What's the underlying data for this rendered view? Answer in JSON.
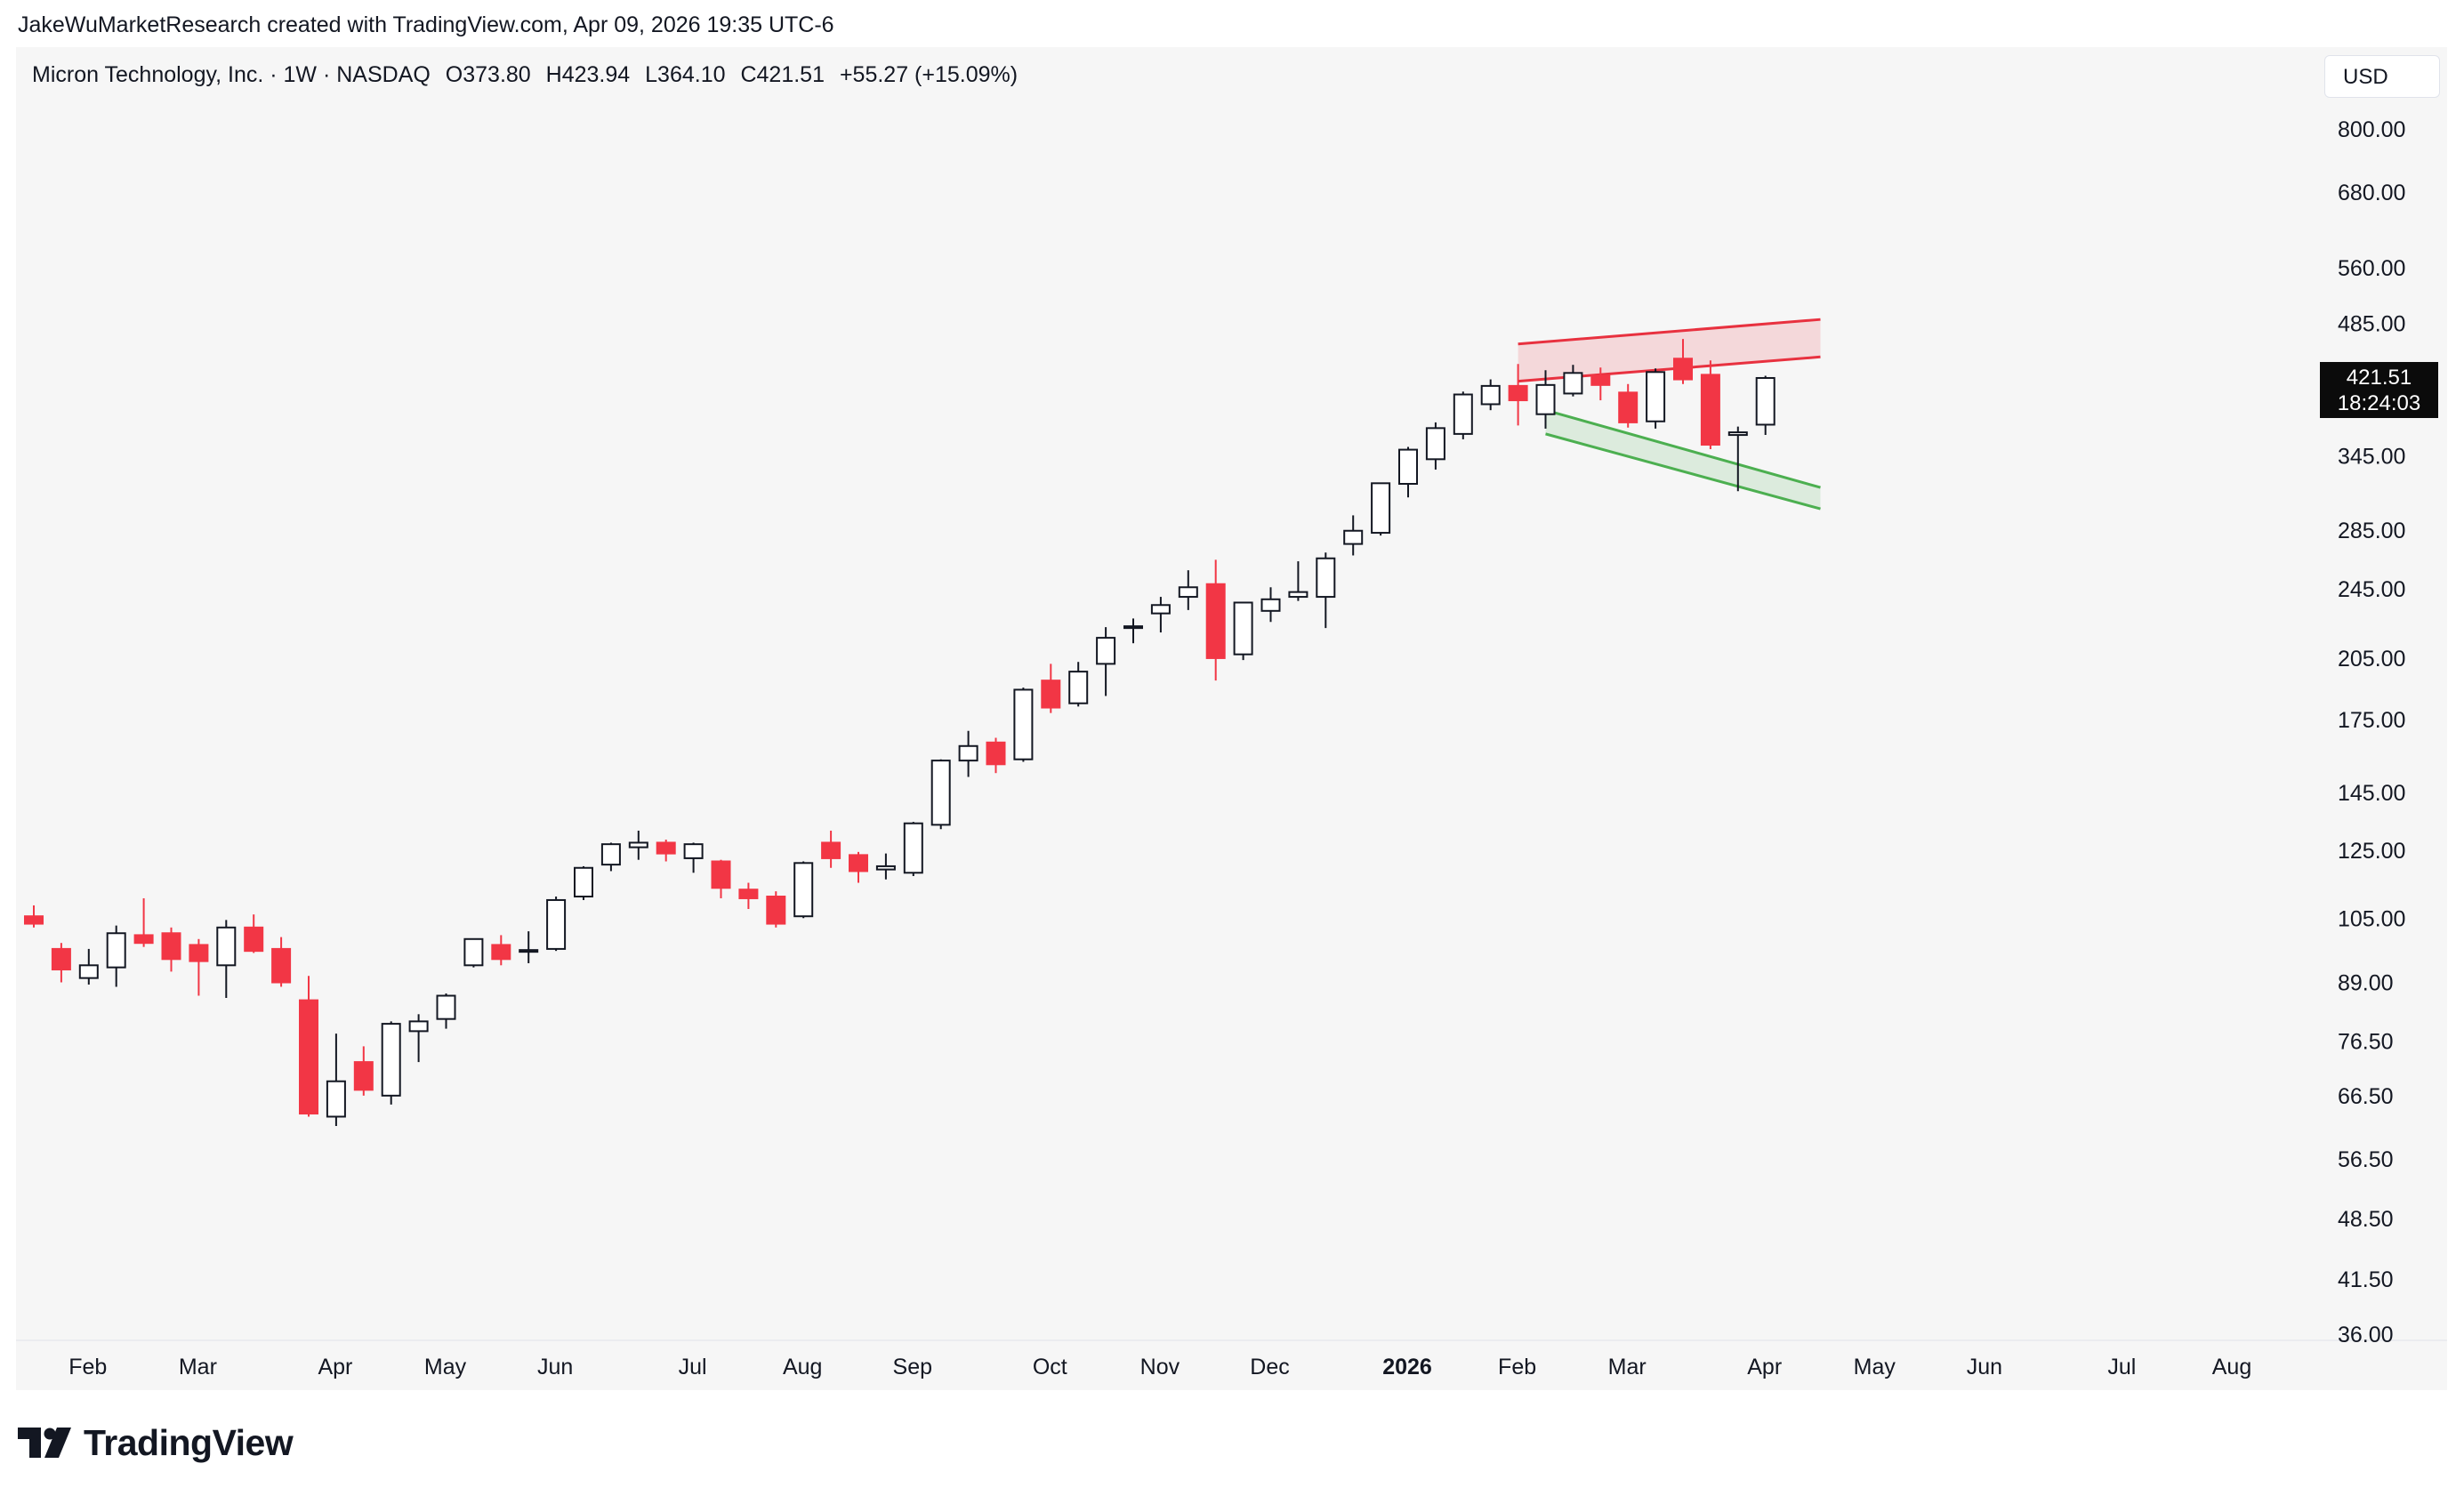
{
  "credit": "JakeWuMarketResearch created with TradingView.com, Apr 09, 2026 19:35 UTC-6",
  "header": {
    "symbol": "Micron Technology, Inc. · 1W · NASDAQ",
    "open": "O373.80",
    "high": "H423.94",
    "low": "L364.10",
    "close": "C421.51",
    "change": "+55.27 (+15.09%)"
  },
  "currency": "USD",
  "last_price": {
    "price": "421.51",
    "countdown": "18:24:03"
  },
  "brand": "TradingView",
  "colors": {
    "up": "#ffffff",
    "down": "#f23645",
    "outline": "#131722",
    "resistance": "#e8313f",
    "support": "#4caf50"
  },
  "chart_data": {
    "type": "candlestick",
    "title": "Micron Technology, Inc. · 1W · NASDAQ",
    "scale": "log",
    "ylim": [
      36,
      900
    ],
    "y_ticks": [
      "800.00",
      "680.00",
      "560.00",
      "485.00",
      "345.00",
      "285.00",
      "245.00",
      "205.00",
      "175.00",
      "145.00",
      "125.00",
      "105.00",
      "89.00",
      "76.50",
      "66.50",
      "56.50",
      "48.50",
      "41.50",
      "36.00"
    ],
    "x_ticks": [
      {
        "label": "Feb",
        "week": 2,
        "bold": false
      },
      {
        "label": "Mar",
        "week": 6,
        "bold": false
      },
      {
        "label": "Apr",
        "week": 11,
        "bold": false
      },
      {
        "label": "May",
        "week": 15,
        "bold": false
      },
      {
        "label": "Jun",
        "week": 19,
        "bold": false
      },
      {
        "label": "Jul",
        "week": 24,
        "bold": false
      },
      {
        "label": "Aug",
        "week": 28,
        "bold": false
      },
      {
        "label": "Sep",
        "week": 32,
        "bold": false
      },
      {
        "label": "Oct",
        "week": 37,
        "bold": false
      },
      {
        "label": "Nov",
        "week": 41,
        "bold": false
      },
      {
        "label": "Dec",
        "week": 45,
        "bold": false
      },
      {
        "label": "2026",
        "week": 50,
        "bold": true
      },
      {
        "label": "Feb",
        "week": 54,
        "bold": false
      },
      {
        "label": "Mar",
        "week": 58,
        "bold": false
      },
      {
        "label": "Apr",
        "week": 63,
        "bold": false
      },
      {
        "label": "May",
        "week": 67,
        "bold": false
      },
      {
        "label": "Jun",
        "week": 71,
        "bold": false
      },
      {
        "label": "Jul",
        "week": 76,
        "bold": false
      },
      {
        "label": "Aug",
        "week": 80,
        "bold": false
      }
    ],
    "candles": [
      [
        105.5,
        108.5,
        102.5,
        103.5
      ],
      [
        97.0,
        98.5,
        89.0,
        92.0
      ],
      [
        90.0,
        97.0,
        88.5,
        93.0
      ],
      [
        92.5,
        103.0,
        88.0,
        101.0
      ],
      [
        100.5,
        110.5,
        97.5,
        98.5
      ],
      [
        101.0,
        102.5,
        91.5,
        94.5
      ],
      [
        98.0,
        99.5,
        86.0,
        94.0
      ],
      [
        93.0,
        104.5,
        85.5,
        102.5
      ],
      [
        102.5,
        106.0,
        96.0,
        96.5
      ],
      [
        97.0,
        100.0,
        88.0,
        89.0
      ],
      [
        85.0,
        90.5,
        63.0,
        63.5
      ],
      [
        63.0,
        78.0,
        61.5,
        69.0
      ],
      [
        72.5,
        75.5,
        66.5,
        67.5
      ],
      [
        66.5,
        80.5,
        65.0,
        80.0
      ],
      [
        78.5,
        82.0,
        72.5,
        80.5
      ],
      [
        81.0,
        86.5,
        79.0,
        86.0
      ],
      [
        93.0,
        99.5,
        92.5,
        99.5
      ],
      [
        98.0,
        100.5,
        93.0,
        94.5
      ],
      [
        96.5,
        101.5,
        93.5,
        96.5
      ],
      [
        97.0,
        111.0,
        96.5,
        110.0
      ],
      [
        111.0,
        120.0,
        110.0,
        119.5
      ],
      [
        120.5,
        127.5,
        118.5,
        127.0
      ],
      [
        126.0,
        131.5,
        122.0,
        127.5
      ],
      [
        127.5,
        128.5,
        121.5,
        124.0
      ],
      [
        122.5,
        127.5,
        118.0,
        127.0
      ],
      [
        121.5,
        122.0,
        110.5,
        113.5
      ],
      [
        113.0,
        115.0,
        107.5,
        110.5
      ],
      [
        111.0,
        112.5,
        102.5,
        103.5
      ],
      [
        105.5,
        121.5,
        105.0,
        121.0
      ],
      [
        127.5,
        131.5,
        119.5,
        122.5
      ],
      [
        123.5,
        124.5,
        115.0,
        118.5
      ],
      [
        119.0,
        124.0,
        116.0,
        120.0
      ],
      [
        118.0,
        134.5,
        117.0,
        134.0
      ],
      [
        133.5,
        158.0,
        132.0,
        157.5
      ],
      [
        157.5,
        170.0,
        151.0,
        163.5
      ],
      [
        165.0,
        167.0,
        152.5,
        156.0
      ],
      [
        158.0,
        190.0,
        157.0,
        189.0
      ],
      [
        193.5,
        202.0,
        178.0,
        180.5
      ],
      [
        182.5,
        203.0,
        181.0,
        198.0
      ],
      [
        202.0,
        222.0,
        186.0,
        216.0
      ],
      [
        222.0,
        227.0,
        213.0,
        222.0
      ],
      [
        230.0,
        240.0,
        219.0,
        235.0
      ],
      [
        240.0,
        257.0,
        232.0,
        246.0
      ],
      [
        248.0,
        264.0,
        193.5,
        205.0
      ],
      [
        207.0,
        237.0,
        204.0,
        236.5
      ],
      [
        231.5,
        246.0,
        225.0,
        238.5
      ],
      [
        240.0,
        263.0,
        237.5,
        243.0
      ],
      [
        240.0,
        269.0,
        221.5,
        265.0
      ],
      [
        275.0,
        296.0,
        267.0,
        284.5
      ],
      [
        283.0,
        322.0,
        281.0,
        321.5
      ],
      [
        321.0,
        353.0,
        310.0,
        350.5
      ],
      [
        342.0,
        376.0,
        333.0,
        370.5
      ],
      [
        365.0,
        407.0,
        360.0,
        404.0
      ],
      [
        394.0,
        420.0,
        388.0,
        413.0
      ],
      [
        413.0,
        437.0,
        373.0,
        398.0
      ],
      [
        384.0,
        430.0,
        370.0,
        414.0
      ],
      [
        405.0,
        436.0,
        402.0,
        427.0
      ],
      [
        424.0,
        433.0,
        398.0,
        414.0
      ],
      [
        406.0,
        415.0,
        371.0,
        376.0
      ],
      [
        377.0,
        432.0,
        370.0,
        428.0
      ],
      [
        443.0,
        466.0,
        415.0,
        420.0
      ],
      [
        425.0,
        441.0,
        351.0,
        355.0
      ],
      [
        364.0,
        372.0,
        315.0,
        366.5
      ],
      [
        373.8,
        423.94,
        364.1,
        421.51
      ]
    ],
    "trendlines": [
      {
        "name": "resistance-channel",
        "color": "#e8313f",
        "upper": [
          [
            54,
            460
          ],
          [
            65,
            490
          ]
        ],
        "lower": [
          [
            54,
            418
          ],
          [
            65,
            445
          ]
        ]
      },
      {
        "name": "support-channel",
        "color": "#4caf50",
        "upper": [
          [
            55,
            388
          ],
          [
            65,
            318
          ]
        ],
        "lower": [
          [
            55,
            365
          ],
          [
            65,
            301
          ]
        ]
      }
    ]
  }
}
